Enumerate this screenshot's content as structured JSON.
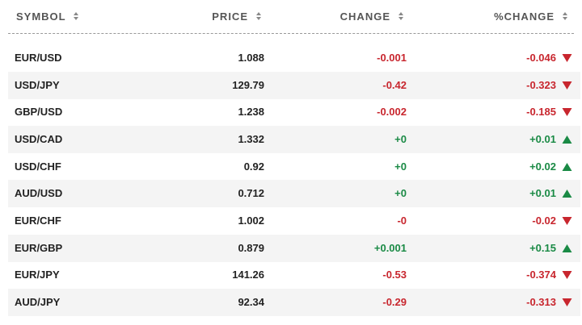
{
  "table": {
    "columns": [
      "SYMBOL",
      "PRICE",
      "CHANGE",
      "%CHANGE"
    ],
    "rows": [
      [
        "EUR/USD",
        "1.088",
        "-0.001",
        "-0.046"
      ],
      [
        "USD/JPY",
        "129.79",
        "-0.42",
        "-0.323"
      ],
      [
        "GBP/USD",
        "1.238",
        "-0.002",
        "-0.185"
      ],
      [
        "USD/CAD",
        "1.332",
        "+0",
        "+0.01"
      ],
      [
        "USD/CHF",
        "0.92",
        "+0",
        "+0.02"
      ],
      [
        "AUD/USD",
        "0.712",
        "+0",
        "+0.01"
      ],
      [
        "EUR/CHF",
        "1.002",
        "-0",
        "-0.02"
      ],
      [
        "EUR/GBP",
        "0.879",
        "+0.001",
        "+0.15"
      ],
      [
        "EUR/JPY",
        "141.26",
        "-0.53",
        "-0.374"
      ],
      [
        "AUD/JPY",
        "92.34",
        "-0.29",
        "-0.313"
      ]
    ]
  }
}
